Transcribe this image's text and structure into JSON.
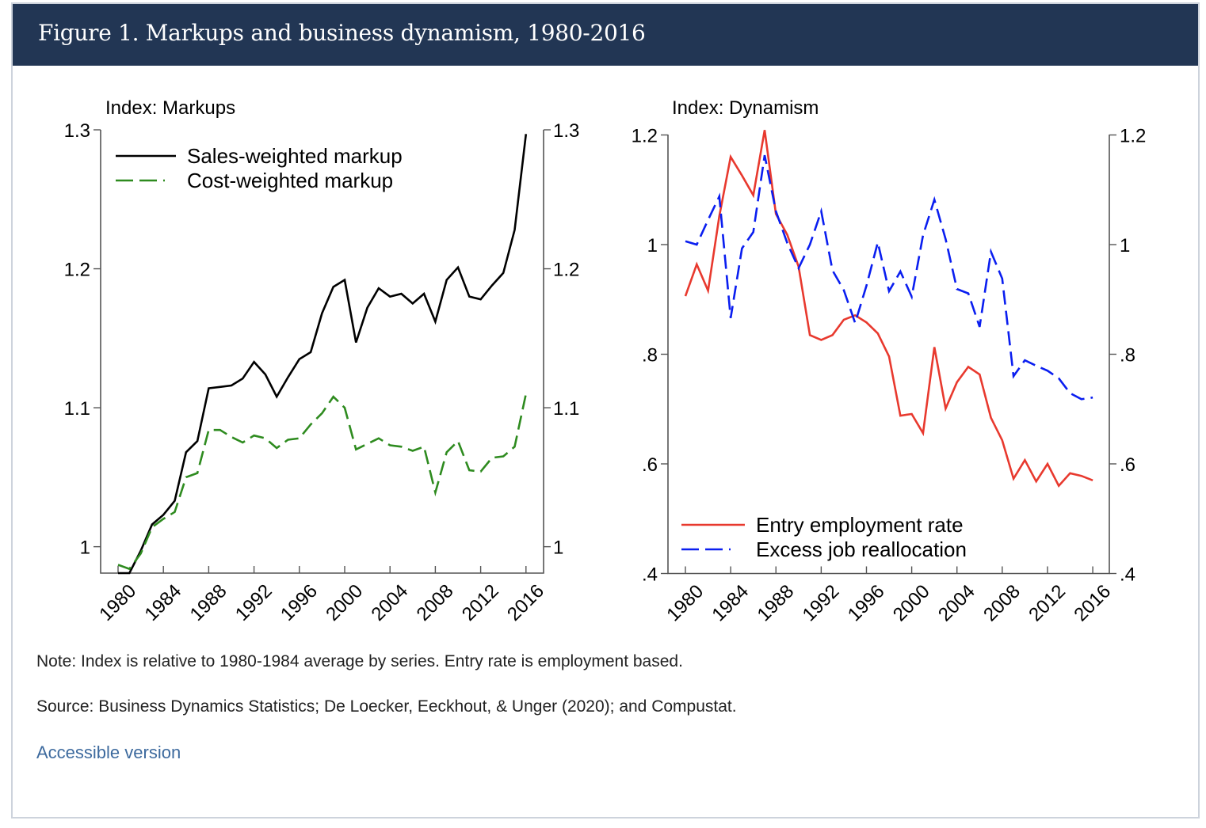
{
  "figure": {
    "title": "Figure 1. Markups and business dynamism, 1980-2016",
    "note": "Note: Index is relative to 1980-1984 average by series. Entry rate is employment based.",
    "source": "Source: Business Dynamics Statistics; De Loecker, Eeckhout, & Unger (2020); and Compustat.",
    "accessible_link": "Accessible version",
    "colors": {
      "header_bg": "#223654",
      "link": "#3d6a9e"
    }
  },
  "chart_data": [
    {
      "type": "line",
      "title": "Index: Markups",
      "xlabel": "",
      "ylabel": "Index: Markups",
      "x": [
        1980,
        1981,
        1982,
        1983,
        1984,
        1985,
        1986,
        1987,
        1988,
        1989,
        1990,
        1991,
        1992,
        1993,
        1994,
        1995,
        1996,
        1997,
        1998,
        1999,
        2000,
        2001,
        2002,
        2003,
        2004,
        2005,
        2006,
        2007,
        2008,
        2009,
        2010,
        2011,
        2012,
        2013,
        2014,
        2015,
        2016
      ],
      "xticks": [
        1980,
        1984,
        1988,
        1992,
        1996,
        2000,
        2004,
        2008,
        2012,
        2016
      ],
      "xtick_labels": [
        "1980",
        "1984",
        "1988",
        "1992",
        "1996",
        "2000",
        "2004",
        "2008",
        "2012",
        "2016"
      ],
      "xlim": [
        1979.4,
        1997.2
      ],
      "yticks": [
        1,
        1.1,
        1.2,
        1.3
      ],
      "ytick_labels": [
        "1",
        "1.1",
        "1.2",
        "1.3"
      ],
      "ylim": [
        0.981,
        1.3
      ],
      "dual_y_axis_mirrored": true,
      "grid": false,
      "legend_position": "top-left",
      "series": [
        {
          "name": "Sales-weighted markup",
          "color": "#000000",
          "style": "solid",
          "values": [
            0.981,
            0.981,
            0.997,
            1.016,
            1.023,
            1.033,
            1.068,
            1.076,
            1.114,
            1.115,
            1.116,
            1.121,
            1.133,
            1.124,
            1.108,
            1.122,
            1.135,
            1.14,
            1.168,
            1.187,
            1.192,
            1.147,
            1.172,
            1.186,
            1.18,
            1.182,
            1.175,
            1.182,
            1.162,
            1.192,
            1.201,
            1.18,
            1.178,
            1.188,
            1.197,
            1.228,
            1.297
          ]
        },
        {
          "name": "Cost-weighted markup",
          "color": "#2e8b1f",
          "style": "dashed",
          "values": [
            0.987,
            0.984,
            0.995,
            1.014,
            1.02,
            1.025,
            1.05,
            1.053,
            1.084,
            1.084,
            1.079,
            1.075,
            1.08,
            1.078,
            1.071,
            1.077,
            1.078,
            1.088,
            1.096,
            1.108,
            1.1,
            1.07,
            1.074,
            1.078,
            1.073,
            1.072,
            1.069,
            1.072,
            1.039,
            1.068,
            1.076,
            1.055,
            1.054,
            1.064,
            1.065,
            1.072,
            1.11
          ]
        }
      ]
    },
    {
      "type": "line",
      "title": "Index: Dynamism",
      "xlabel": "",
      "ylabel": "Index: Dynamism",
      "x": [
        1980,
        1981,
        1982,
        1983,
        1984,
        1985,
        1986,
        1987,
        1988,
        1989,
        1990,
        1991,
        1992,
        1993,
        1994,
        1995,
        1996,
        1997,
        1998,
        1999,
        2000,
        2001,
        2002,
        2003,
        2004,
        2005,
        2006,
        2007,
        2008,
        2009,
        2010,
        2011,
        2012,
        2013,
        2014,
        2015,
        2016
      ],
      "xticks": [
        1980,
        1984,
        1988,
        1992,
        1996,
        2000,
        2004,
        2008,
        2012,
        2016
      ],
      "xtick_labels": [
        "1980",
        "1984",
        "1988",
        "1992",
        "1996",
        "2000",
        "2004",
        "2008",
        "2012",
        "2016"
      ],
      "yticks": [
        0.4,
        0.6,
        0.8,
        1.0,
        1.2
      ],
      "ytick_labels": [
        ".4",
        ".6",
        ".8",
        "1",
        "1.2"
      ],
      "ylim": [
        0.4,
        1.2
      ],
      "dual_y_axis_mirrored": true,
      "grid": false,
      "legend_position": "bottom-left",
      "series": [
        {
          "name": "Entry employment rate",
          "color": "#e8392e",
          "style": "solid",
          "values": [
            0.906,
            0.964,
            0.916,
            1.052,
            1.16,
            1.126,
            1.09,
            1.209,
            1.056,
            1.018,
            0.96,
            0.835,
            0.826,
            0.835,
            0.863,
            0.871,
            0.858,
            0.838,
            0.796,
            0.688,
            0.691,
            0.656,
            0.813,
            0.701,
            0.749,
            0.777,
            0.763,
            0.684,
            0.643,
            0.573,
            0.607,
            0.568,
            0.6,
            0.56,
            0.583,
            0.578,
            0.57
          ]
        },
        {
          "name": "Excess job reallocation",
          "color": "#0a1ef0",
          "style": "dashed",
          "values": [
            1.006,
            1.0,
            1.045,
            1.088,
            0.866,
            0.993,
            1.023,
            1.163,
            1.061,
            1.003,
            0.957,
            1.0,
            1.061,
            0.953,
            0.917,
            0.857,
            0.925,
            1.004,
            0.915,
            0.951,
            0.905,
            1.017,
            1.082,
            1.01,
            0.919,
            0.911,
            0.85,
            0.987,
            0.938,
            0.76,
            0.789,
            0.779,
            0.77,
            0.756,
            0.729,
            0.718,
            0.721
          ]
        }
      ]
    }
  ]
}
